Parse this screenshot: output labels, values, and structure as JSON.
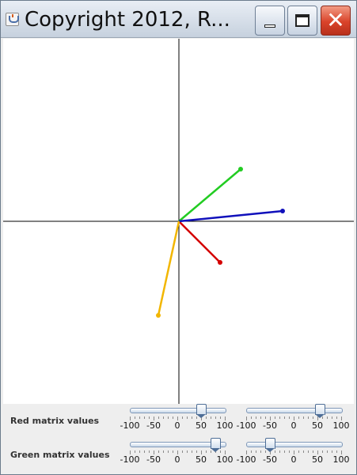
{
  "window": {
    "title": "Copyright 2012, R...",
    "icon": "java-app-icon",
    "buttons": {
      "minimize": "minimize-icon",
      "maximize": "maximize-icon",
      "close": "close-icon"
    }
  },
  "vectors": [
    {
      "name": "red",
      "color": "#d40000",
      "x": 52,
      "y": -52
    },
    {
      "name": "green",
      "color": "#22cc22",
      "x": 78,
      "y": 66
    },
    {
      "name": "blue",
      "color": "#1010bb",
      "x": 131,
      "y": 13
    },
    {
      "name": "orange",
      "color": "#f2b600",
      "x": -26,
      "y": -119
    }
  ],
  "controls": {
    "red": {
      "label": "Red matrix values",
      "sliders": [
        {
          "value": 50
        },
        {
          "value": 55
        }
      ]
    },
    "green": {
      "label": "Green matrix values",
      "sliders": [
        {
          "value": 80
        },
        {
          "value": -50
        }
      ]
    },
    "scale": {
      "min": -100,
      "max": 100,
      "labels": [
        "-100",
        "-50",
        "0",
        "50",
        "100"
      ]
    }
  }
}
